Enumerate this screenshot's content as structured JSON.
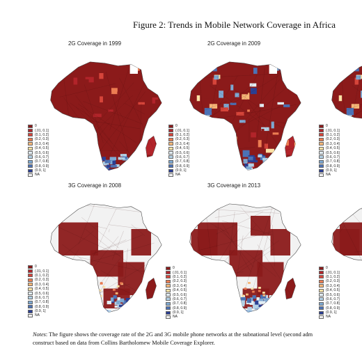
{
  "figure": {
    "title": "Figure 2: Trends in Mobile Network Coverage in Africa"
  },
  "legend": {
    "items": [
      "0",
      "(.01, 0.1]",
      "(0.1, 0.2]",
      "(0.2, 0.3]",
      "(0.3, 0.4]",
      "(0.4, 0.5]",
      "(0.5, 0.6]",
      "(0.6, 0.7]",
      "(0.7, 0.8]",
      "(0.8, 0.9]",
      "(0.9, 1]",
      "NA"
    ],
    "colors": [
      "#8b1a1a",
      "#b2242a",
      "#d6453a",
      "#ec7d52",
      "#f6b778",
      "#fbe2a6",
      "#e3eef4",
      "#b3d1e6",
      "#7ea9d2",
      "#4c72b5",
      "#2b3f93",
      "#f0f0f0"
    ]
  },
  "panels": [
    {
      "title": "2G Coverage in 1999",
      "variant": "2g1999"
    },
    {
      "title": "2G Coverage in 2009",
      "variant": "2g2009"
    },
    {
      "title": "3G Coverage in 2008",
      "variant": "3g2008"
    },
    {
      "title": "3G Coverage in 2013",
      "variant": "3g2013"
    }
  ],
  "notes": {
    "label": "Notes",
    "line1": ": The figure shows the coverage rate of the 2G and 3G mobile phone networks at the subnational level (second adm",
    "line2": "construct based on data from Collins Bartholomew Mobile Coverage Explorer."
  }
}
